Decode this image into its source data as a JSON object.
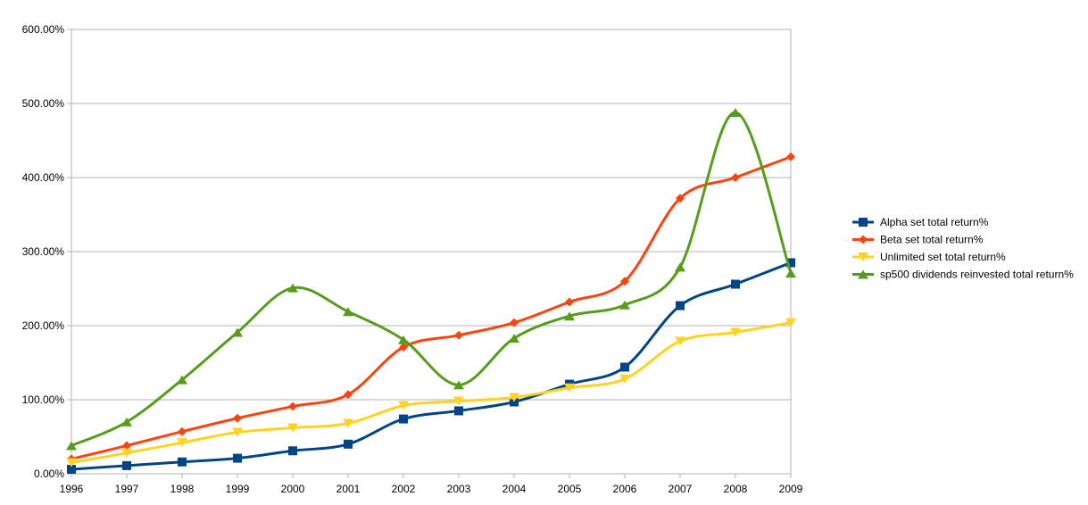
{
  "chart_data": {
    "type": "line",
    "title": "",
    "xlabel": "",
    "ylabel": "",
    "x": [
      "1996",
      "1997",
      "1998",
      "1999",
      "2000",
      "2001",
      "2002",
      "2003",
      "2004",
      "2005",
      "2006",
      "2007",
      "2008",
      "2009"
    ],
    "ylim": [
      0,
      600
    ],
    "yticks": [
      0,
      100,
      200,
      300,
      400,
      500,
      600
    ],
    "ytick_labels": [
      "0.00%",
      "100.00%",
      "200.00%",
      "300.00%",
      "400.00%",
      "500.00%",
      "600.00%"
    ],
    "y_unit": "%",
    "grid": "horizontal",
    "smooth": true,
    "legend_position": "right",
    "series": [
      {
        "name": "Alpha set total return%",
        "color": "#004586",
        "marker": "square",
        "values": [
          6,
          11,
          16,
          21,
          31,
          40,
          74,
          85,
          97,
          121,
          144,
          227,
          256,
          285
        ]
      },
      {
        "name": "Beta set total return%",
        "color": "#ff420e",
        "marker": "diamond",
        "values": [
          20,
          38,
          57,
          75,
          91,
          107,
          171,
          187,
          204,
          232,
          260,
          372,
          400,
          428
        ]
      },
      {
        "name": "Unlimited set total return%",
        "color": "#ffd320",
        "marker": "triangle-down",
        "values": [
          15,
          28,
          42,
          56,
          62,
          68,
          92,
          98,
          103,
          116,
          128,
          179,
          191,
          204
        ]
      },
      {
        "name": "sp500 dividends reinvested total return%",
        "color": "#579d1c",
        "marker": "triangle-up",
        "values": [
          38,
          70,
          127,
          191,
          251,
          219,
          181,
          120,
          183,
          213,
          228,
          279,
          488,
          271
        ]
      }
    ]
  }
}
